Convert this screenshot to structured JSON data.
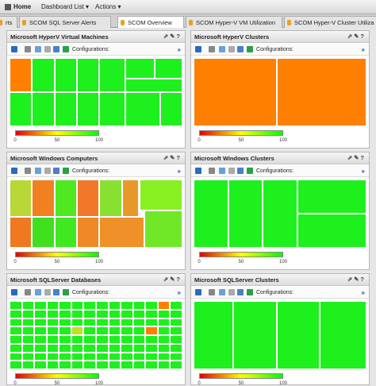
{
  "nav": {
    "home": "Home",
    "dashboard_list": "Dashboard List",
    "actions": "Actions"
  },
  "tabs": [
    "rts",
    "SCOM SQL Server Alerts",
    "SCOM Overview",
    "SCOM Hyper-V VM Utilization",
    "SCOM Hyper-V Cluster Utiliza"
  ],
  "active_tab": 2,
  "panels": [
    {
      "title": "Microsoft HyperV Virtual Machines",
      "toolbar_label": "Configurations:",
      "scale": [
        0,
        50,
        100
      ]
    },
    {
      "title": "Microsoft HyperV Clusters",
      "toolbar_label": "Configurations:",
      "scale": [
        0,
        50,
        100
      ]
    },
    {
      "title": "Microsoft Windows Computers",
      "toolbar_label": "Configurations:",
      "scale": [
        0,
        50,
        100
      ]
    },
    {
      "title": "Microsoft Windows Clusters",
      "toolbar_label": "Configurations:",
      "scale": [
        0,
        50,
        100
      ]
    },
    {
      "title": "Microsoft SQLServer Databases",
      "toolbar_label": "Configurations:",
      "scale": [
        0,
        50,
        100
      ]
    },
    {
      "title": "Microsoft SQLServer Clusters",
      "toolbar_label": "Configurations:",
      "scale": [
        0,
        50,
        100
      ]
    }
  ]
}
